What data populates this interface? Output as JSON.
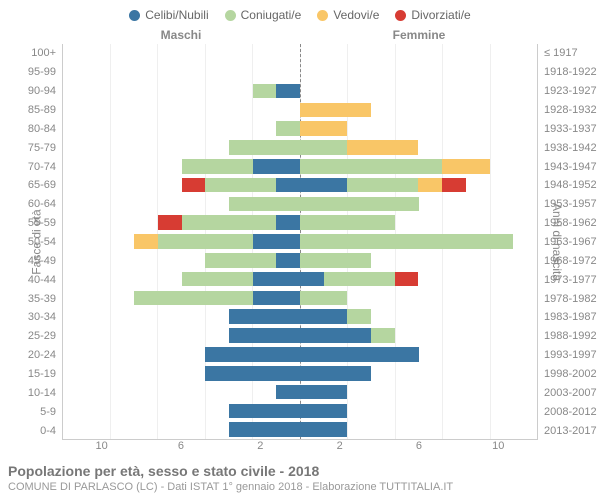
{
  "chart": {
    "type": "population-pyramid",
    "legend": [
      {
        "label": "Celibi/Nubili",
        "color": "#3b76a3"
      },
      {
        "label": "Coniugati/e",
        "color": "#b5d6a0"
      },
      {
        "label": "Vedovi/e",
        "color": "#f9c667"
      },
      {
        "label": "Divorziati/e",
        "color": "#d73c33"
      }
    ],
    "headers": {
      "left": "Maschi",
      "right": "Femmine"
    },
    "y_axis_left_title": "Fasce di età",
    "y_axis_right_title": "Anni di nascita",
    "x_max": 10,
    "x_ticks_left": [
      "10",
      "6",
      "2"
    ],
    "x_ticks_right": [
      "2",
      "6",
      "10"
    ],
    "background_color": "#ffffff",
    "grid_color": "#efefef",
    "age_label_fontsize": 11,
    "caption_title": "Popolazione per età, sesso e stato civile - 2018",
    "caption_subtitle": "COMUNE DI PARLASCO (LC) - Dati ISTAT 1° gennaio 2018 - Elaborazione TUTTITALIA.IT",
    "rows": [
      {
        "age": "100+",
        "birth": "≤ 1917",
        "m": {
          "c": 0,
          "co": 0,
          "v": 0,
          "d": 0
        },
        "f": {
          "c": 0,
          "co": 0,
          "v": 0,
          "d": 0
        }
      },
      {
        "age": "95-99",
        "birth": "1918-1922",
        "m": {
          "c": 0,
          "co": 0,
          "v": 0,
          "d": 0
        },
        "f": {
          "c": 0,
          "co": 0,
          "v": 0,
          "d": 0
        }
      },
      {
        "age": "90-94",
        "birth": "1923-1927",
        "m": {
          "c": 1,
          "co": 1,
          "v": 0,
          "d": 0
        },
        "f": {
          "c": 0,
          "co": 0,
          "v": 0,
          "d": 0
        }
      },
      {
        "age": "85-89",
        "birth": "1928-1932",
        "m": {
          "c": 0,
          "co": 0,
          "v": 0,
          "d": 0
        },
        "f": {
          "c": 0,
          "co": 0,
          "v": 3,
          "d": 0
        }
      },
      {
        "age": "80-84",
        "birth": "1933-1937",
        "m": {
          "c": 0,
          "co": 1,
          "v": 0,
          "d": 0
        },
        "f": {
          "c": 0,
          "co": 0,
          "v": 2,
          "d": 0
        }
      },
      {
        "age": "75-79",
        "birth": "1938-1942",
        "m": {
          "c": 0,
          "co": 3,
          "v": 0,
          "d": 0
        },
        "f": {
          "c": 0,
          "co": 2,
          "v": 3,
          "d": 0
        }
      },
      {
        "age": "70-74",
        "birth": "1943-1947",
        "m": {
          "c": 2,
          "co": 3,
          "v": 0,
          "d": 0
        },
        "f": {
          "c": 0,
          "co": 6,
          "v": 2,
          "d": 0
        }
      },
      {
        "age": "65-69",
        "birth": "1948-1952",
        "m": {
          "c": 1,
          "co": 3,
          "v": 0,
          "d": 1
        },
        "f": {
          "c": 2,
          "co": 3,
          "v": 1,
          "d": 1
        }
      },
      {
        "age": "60-64",
        "birth": "1953-1957",
        "m": {
          "c": 0,
          "co": 3,
          "v": 0,
          "d": 0
        },
        "f": {
          "c": 0,
          "co": 5,
          "v": 0,
          "d": 0
        }
      },
      {
        "age": "55-59",
        "birth": "1958-1962",
        "m": {
          "c": 1,
          "co": 4,
          "v": 0,
          "d": 1
        },
        "f": {
          "c": 0,
          "co": 4,
          "v": 0,
          "d": 0
        }
      },
      {
        "age": "50-54",
        "birth": "1963-1967",
        "m": {
          "c": 2,
          "co": 4,
          "v": 1,
          "d": 0
        },
        "f": {
          "c": 0,
          "co": 9,
          "v": 0,
          "d": 0
        }
      },
      {
        "age": "45-49",
        "birth": "1968-1972",
        "m": {
          "c": 1,
          "co": 3,
          "v": 0,
          "d": 0
        },
        "f": {
          "c": 0,
          "co": 3,
          "v": 0,
          "d": 0
        }
      },
      {
        "age": "40-44",
        "birth": "1973-1977",
        "m": {
          "c": 2,
          "co": 3,
          "v": 0,
          "d": 0
        },
        "f": {
          "c": 1,
          "co": 3,
          "v": 0,
          "d": 1
        }
      },
      {
        "age": "35-39",
        "birth": "1978-1982",
        "m": {
          "c": 2,
          "co": 5,
          "v": 0,
          "d": 0
        },
        "f": {
          "c": 0,
          "co": 2,
          "v": 0,
          "d": 0
        }
      },
      {
        "age": "30-34",
        "birth": "1983-1987",
        "m": {
          "c": 3,
          "co": 0,
          "v": 0,
          "d": 0
        },
        "f": {
          "c": 2,
          "co": 1,
          "v": 0,
          "d": 0
        }
      },
      {
        "age": "25-29",
        "birth": "1988-1992",
        "m": {
          "c": 3,
          "co": 0,
          "v": 0,
          "d": 0
        },
        "f": {
          "c": 3,
          "co": 1,
          "v": 0,
          "d": 0
        }
      },
      {
        "age": "20-24",
        "birth": "1993-1997",
        "m": {
          "c": 4,
          "co": 0,
          "v": 0,
          "d": 0
        },
        "f": {
          "c": 5,
          "co": 0,
          "v": 0,
          "d": 0
        }
      },
      {
        "age": "15-19",
        "birth": "1998-2002",
        "m": {
          "c": 4,
          "co": 0,
          "v": 0,
          "d": 0
        },
        "f": {
          "c": 3,
          "co": 0,
          "v": 0,
          "d": 0
        }
      },
      {
        "age": "10-14",
        "birth": "2003-2007",
        "m": {
          "c": 1,
          "co": 0,
          "v": 0,
          "d": 0
        },
        "f": {
          "c": 2,
          "co": 0,
          "v": 0,
          "d": 0
        }
      },
      {
        "age": "5-9",
        "birth": "2008-2012",
        "m": {
          "c": 3,
          "co": 0,
          "v": 0,
          "d": 0
        },
        "f": {
          "c": 2,
          "co": 0,
          "v": 0,
          "d": 0
        }
      },
      {
        "age": "0-4",
        "birth": "2013-2017",
        "m": {
          "c": 3,
          "co": 0,
          "v": 0,
          "d": 0
        },
        "f": {
          "c": 2,
          "co": 0,
          "v": 0,
          "d": 0
        }
      }
    ]
  }
}
